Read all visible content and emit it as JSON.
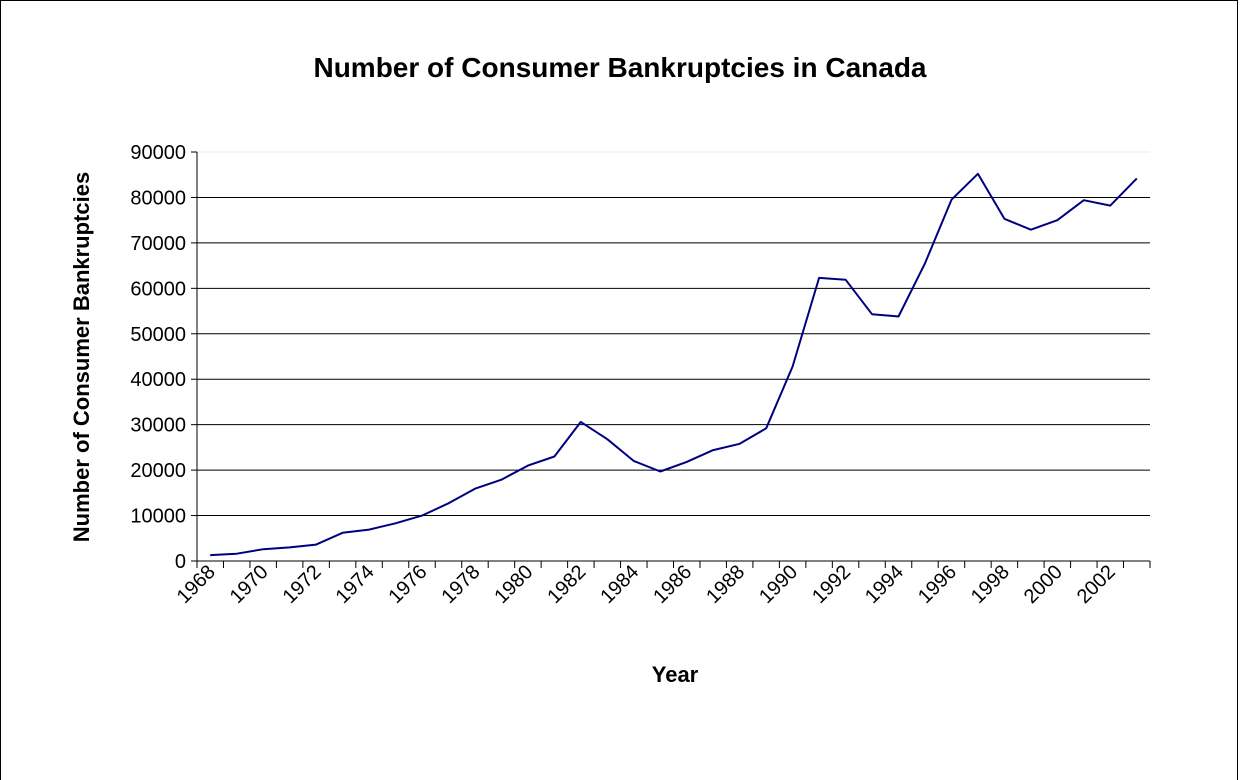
{
  "chart_data": {
    "type": "line",
    "title": "Number of Consumer Bankruptcies in Canada",
    "xlabel": "Year",
    "ylabel": "Number of Consumer Bankruptcies",
    "ylim": [
      0,
      90000
    ],
    "yticks": [
      0,
      10000,
      20000,
      30000,
      40000,
      50000,
      60000,
      70000,
      80000,
      90000
    ],
    "xtick_labels": [
      "1968",
      "1970",
      "1972",
      "1974",
      "1976",
      "1978",
      "1980",
      "1982",
      "1984",
      "1986",
      "1988",
      "1990",
      "1992",
      "1994",
      "1996",
      "1998",
      "2000",
      "2002"
    ],
    "grid": "horizontal",
    "legend": "none",
    "line_color": "#000080",
    "x": [
      1968,
      1969,
      1970,
      1971,
      1972,
      1973,
      1974,
      1975,
      1976,
      1977,
      1978,
      1979,
      1980,
      1981,
      1982,
      1983,
      1984,
      1985,
      1986,
      1987,
      1988,
      1989,
      1990,
      1991,
      1992,
      1993,
      1994,
      1995,
      1996,
      1997,
      1998,
      1999,
      2000,
      2001,
      2002,
      2003
    ],
    "series": [
      {
        "values": [
          1300,
          1600,
          2600,
          3000,
          3600,
          6200,
          6900,
          8300,
          10000,
          12700,
          15900,
          17900,
          21000,
          23000,
          30600,
          26800,
          22000,
          19700,
          21800,
          24400,
          25800,
          29200,
          42800,
          62300,
          61900,
          54300,
          53800,
          65500,
          79500,
          85200,
          75300,
          72900,
          75000,
          79400,
          78200,
          84200
        ]
      }
    ]
  }
}
